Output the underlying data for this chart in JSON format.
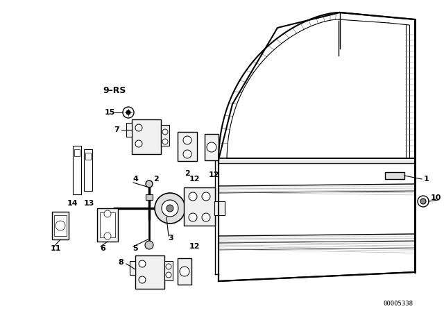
{
  "bg_color": "#ffffff",
  "line_color": "#000000",
  "figure_width": 6.4,
  "figure_height": 4.48,
  "dpi": 100,
  "part_number_text": "00005338"
}
